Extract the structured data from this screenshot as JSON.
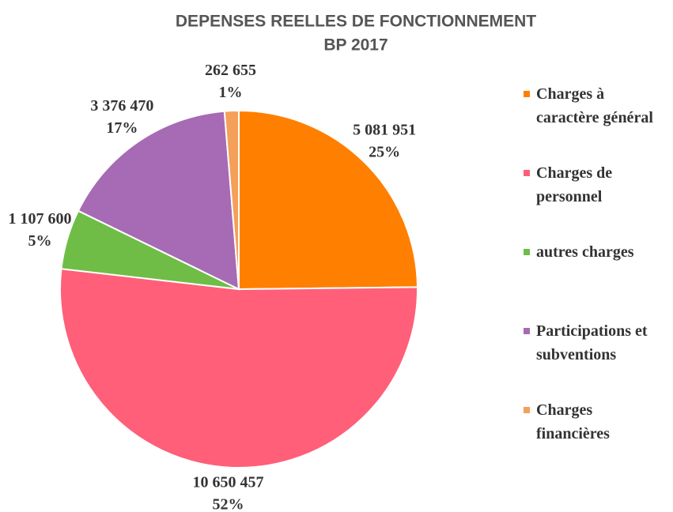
{
  "chart_data": {
    "type": "pie",
    "title": "DEPENSES REELLES DE FONCTIONNEMENT",
    "subtitle": "BP 2017",
    "categories": [
      "Charges à caractère général",
      "Charges de personnel",
      "autres charges",
      "Participations et subventions",
      "Charges financières"
    ],
    "values": [
      5081951,
      10650457,
      1107600,
      3376470,
      262655
    ],
    "value_labels": [
      "5 081 951",
      "10 650 457",
      "1 107 600",
      "3 376 470",
      "262 655"
    ],
    "percent_labels": [
      "25%",
      "52%",
      "5%",
      "17%",
      "1%"
    ],
    "colors": [
      "#ff7f00",
      "#ff5f78",
      "#6fbd47",
      "#a66bb4",
      "#f49f5a"
    ],
    "legend": "right"
  }
}
